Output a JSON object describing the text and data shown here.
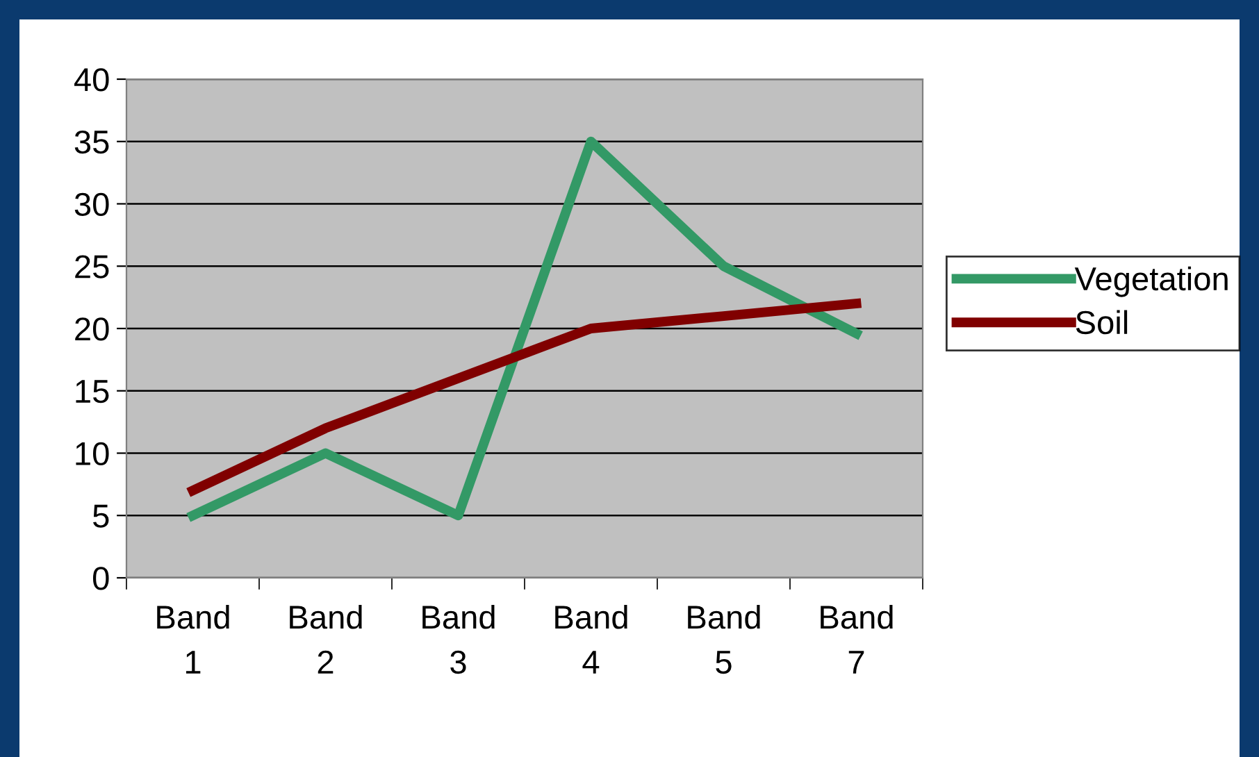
{
  "chart_data": {
    "type": "line",
    "categories": [
      "Band\n1",
      "Band\n2",
      "Band\n3",
      "Band\n4",
      "Band\n5",
      "Band\n7"
    ],
    "series": [
      {
        "name": "Vegetation",
        "color": "#339966",
        "values": [
          5,
          10,
          5,
          35,
          25,
          19.6
        ]
      },
      {
        "name": "Soil",
        "color": "#800000",
        "values": [
          7,
          12,
          16,
          20,
          21,
          22
        ]
      }
    ],
    "ylim": [
      0,
      40
    ],
    "yticks": [
      0,
      5,
      10,
      15,
      20,
      25,
      30,
      35,
      40
    ],
    "grid": "y",
    "legend": "right",
    "marker": "none",
    "line_style": "solid"
  }
}
